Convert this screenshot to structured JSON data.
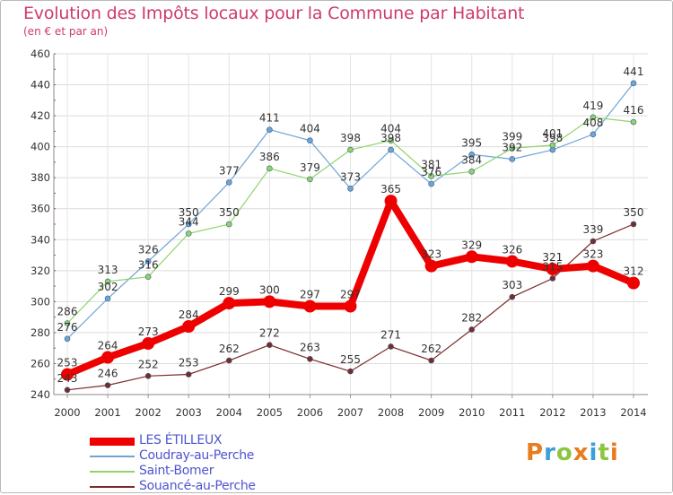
{
  "header": {
    "title": "Evolution des Impôts locaux pour la Commune par Habitant",
    "subtitle": "(en € et par an)"
  },
  "brand": {
    "text": "Proxiti",
    "letter_colors": [
      "#e87c1e",
      "#3ba0d9",
      "#8cc63f",
      "#e87c1e",
      "#3ba0d9",
      "#8cc63f",
      "#e87c1e"
    ]
  },
  "chart_data": {
    "type": "line",
    "x": [
      "2000",
      "2001",
      "2002",
      "2003",
      "2004",
      "2005",
      "2006",
      "2007",
      "2008",
      "2009",
      "2010",
      "2011",
      "2012",
      "2013",
      "2014"
    ],
    "ylim": [
      240,
      460
    ],
    "yticks": [
      240,
      260,
      280,
      300,
      320,
      340,
      360,
      380,
      400,
      420,
      440,
      460
    ],
    "grid": true,
    "legend_position": "bottom-left",
    "series": [
      {
        "name": "LES ÉTILLEUX",
        "color": "#ee0000",
        "emphasis": true,
        "values": [
          253,
          264,
          273,
          284,
          299,
          300,
          297,
          297,
          365,
          323,
          329,
          326,
          321,
          323,
          312
        ]
      },
      {
        "name": "Coudray-au-Perche",
        "color": "#6ea5d6",
        "values": [
          276,
          302,
          326,
          350,
          377,
          411,
          404,
          373,
          398,
          376,
          395,
          392,
          398,
          408,
          441
        ]
      },
      {
        "name": "Saint-Bomer",
        "color": "#8fd46a",
        "values": [
          286,
          313,
          316,
          344,
          350,
          386,
          379,
          398,
          404,
          381,
          384,
          399,
          401,
          419,
          416
        ]
      },
      {
        "name": "Souancé-au-Perche",
        "color": "#7a2a2a",
        "values": [
          243,
          246,
          252,
          253,
          262,
          272,
          263,
          255,
          271,
          262,
          282,
          303,
          315,
          339,
          350
        ]
      }
    ]
  }
}
